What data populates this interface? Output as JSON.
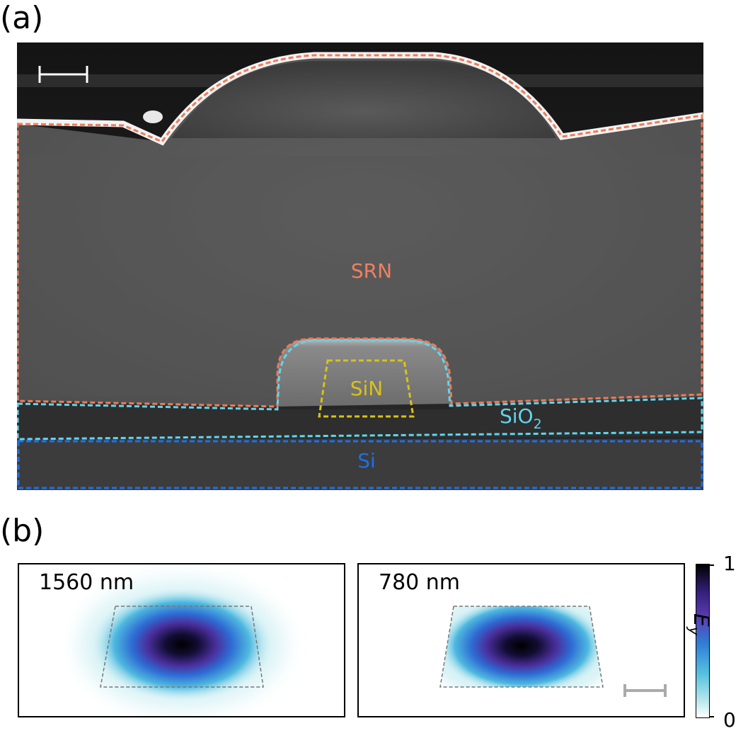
{
  "panel_a": {
    "label": "(a)",
    "regions": {
      "srn": "SRN",
      "sin": "SiN",
      "sio2_main": "SiO",
      "sio2_sub": "2",
      "si": "Si"
    },
    "colors": {
      "srn_outline": "#f07a55",
      "sio2_outline": "#5fd6ee",
      "si_outline": "#1f6fe6",
      "sin_outline": "#d9c21a",
      "scale_bar": "#ffffff"
    }
  },
  "panel_b": {
    "label": "(b)",
    "modes": [
      {
        "wavelength": "1560 nm"
      },
      {
        "wavelength": "780 nm"
      }
    ],
    "colorbar": {
      "label_main": "E",
      "label_sub": "y",
      "max": "1",
      "min": "0",
      "colors": [
        "#ffffff",
        "#58c3de",
        "#2f7fd6",
        "#5b3bb0",
        "#000000"
      ]
    },
    "scale_bar_color": "#aaaaaa",
    "outline_color": "#777777"
  }
}
